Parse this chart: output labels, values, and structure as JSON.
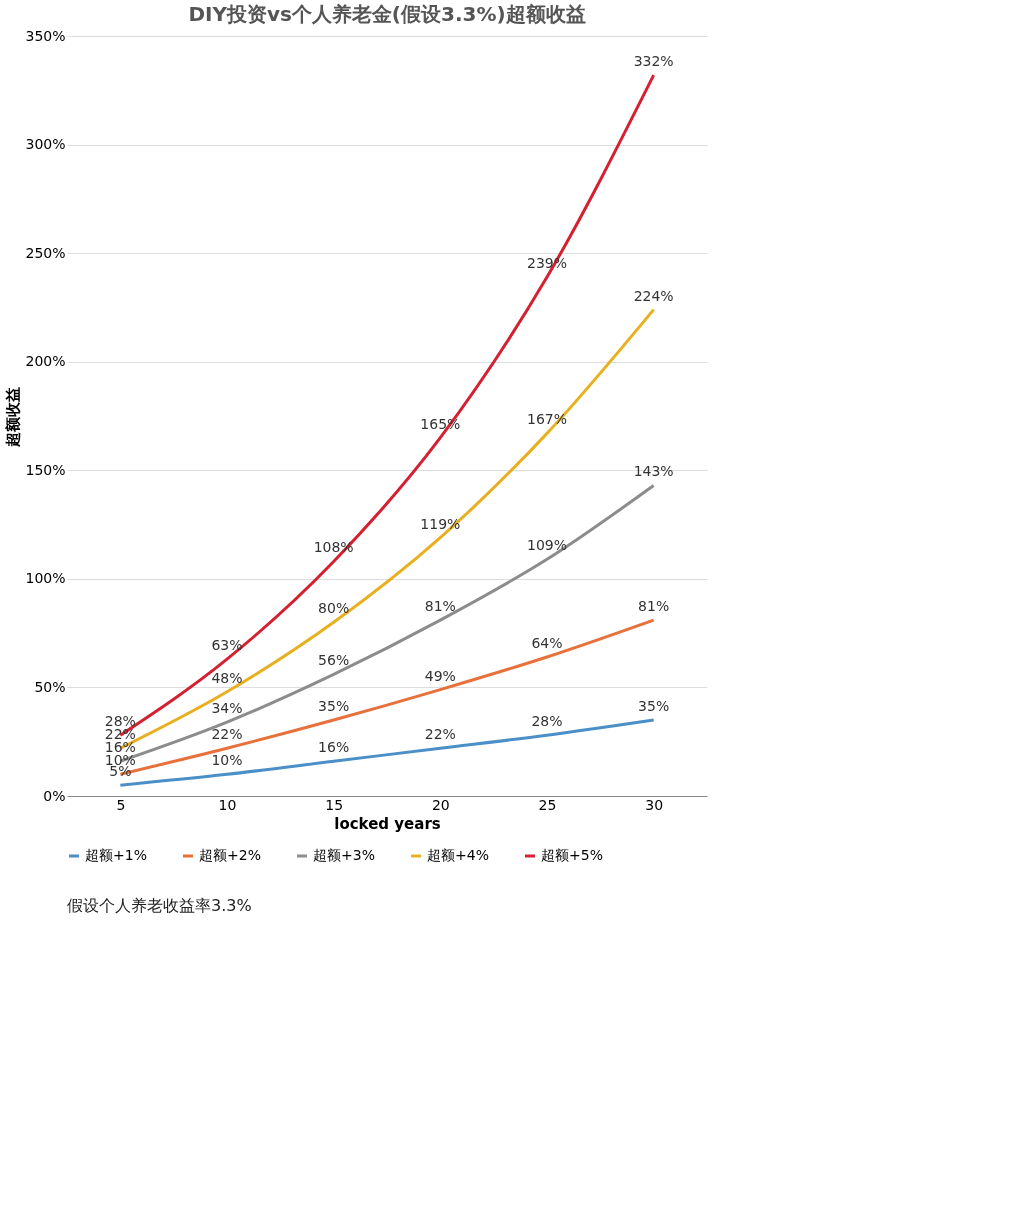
{
  "chart_data": {
    "type": "line",
    "title": "DIY投资vs个人养老金(假设3.3%)超额收益",
    "xlabel": "locked years",
    "ylabel": "超额收益",
    "categories": [
      "5",
      "10",
      "15",
      "20",
      "25",
      "30"
    ],
    "series": [
      {
        "name": "超额+1%",
        "color": "#4a8fc8",
        "values": [
          5,
          10,
          16,
          22,
          28,
          35
        ],
        "value_labels": [
          "5%",
          "10%",
          "16%",
          "22%",
          "28%",
          "35%"
        ]
      },
      {
        "name": "超额+2%",
        "color": "#e8703a",
        "values": [
          10,
          22,
          35,
          49,
          64,
          81
        ],
        "value_labels": [
          "10%",
          "22%",
          "35%",
          "49%",
          "64%",
          "81%"
        ]
      },
      {
        "name": "超额+3%",
        "color": "#8c8c8c",
        "values": [
          16,
          34,
          56,
          81,
          109,
          143
        ],
        "value_labels": [
          "16%",
          "34%",
          "56%",
          "81%",
          "109%",
          "143%"
        ]
      },
      {
        "name": "超额+4%",
        "color": "#e8b020",
        "values": [
          22,
          48,
          80,
          119,
          167,
          224
        ],
        "value_labels": [
          "22%",
          "48%",
          "80%",
          "119%",
          "167%",
          "224%"
        ]
      },
      {
        "name": "超额+5%",
        "color": "#d42030",
        "values": [
          28,
          63,
          108,
          165,
          239,
          332
        ],
        "value_labels": [
          "28%",
          "63%",
          "108%",
          "165%",
          "239%",
          "332%"
        ]
      }
    ],
    "ylim": [
      0,
      350
    ],
    "yticks": [
      {
        "value": 0,
        "label": "0%"
      },
      {
        "value": 50,
        "label": "50%"
      },
      {
        "value": 100,
        "label": "100%"
      },
      {
        "value": 150,
        "label": "150%"
      },
      {
        "value": 200,
        "label": "200%"
      },
      {
        "value": 250,
        "label": "250%"
      },
      {
        "value": 300,
        "label": "300%"
      },
      {
        "value": 350,
        "label": "350%"
      }
    ],
    "grid": "y",
    "legend": "bottom",
    "marker": "none",
    "line_style": "solid",
    "annotations": [
      "假设个人养老收益率3.3%"
    ]
  }
}
